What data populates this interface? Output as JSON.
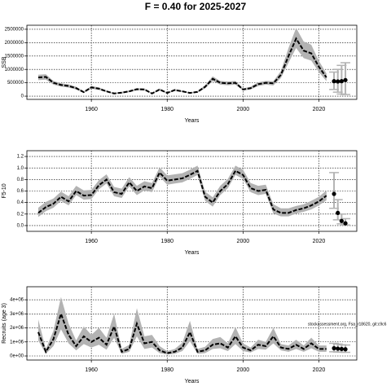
{
  "title": "F = 0.40 for 2025-2027",
  "chart_data": [
    {
      "type": "line",
      "ylabel": "SSB",
      "xlabel": "Years",
      "x": [
        1946,
        1948,
        1950,
        1952,
        1954,
        1956,
        1958,
        1960,
        1962,
        1964,
        1966,
        1968,
        1970,
        1972,
        1974,
        1976,
        1978,
        1980,
        1982,
        1984,
        1986,
        1988,
        1990,
        1992,
        1994,
        1996,
        1998,
        2000,
        2002,
        2004,
        2006,
        2008,
        2010,
        2012,
        2014,
        2016,
        2018,
        2020,
        2022
      ],
      "values": [
        700000,
        720000,
        500000,
        420000,
        380000,
        300000,
        150000,
        330000,
        280000,
        180000,
        100000,
        130000,
        180000,
        260000,
        250000,
        100000,
        250000,
        120000,
        230000,
        180000,
        120000,
        160000,
        350000,
        650000,
        500000,
        480000,
        500000,
        250000,
        300000,
        450000,
        500000,
        480000,
        800000,
        1500000,
        2150000,
        1700000,
        1600000,
        1100000,
        700000
      ],
      "low": [
        600000,
        620000,
        430000,
        360000,
        320000,
        250000,
        120000,
        280000,
        230000,
        150000,
        80000,
        100000,
        150000,
        220000,
        210000,
        80000,
        210000,
        100000,
        190000,
        150000,
        100000,
        130000,
        290000,
        560000,
        430000,
        410000,
        430000,
        210000,
        250000,
        380000,
        430000,
        400000,
        680000,
        1250000,
        1800000,
        1420000,
        1330000,
        900000,
        560000
      ],
      "high": [
        800000,
        820000,
        570000,
        480000,
        440000,
        350000,
        180000,
        380000,
        330000,
        210000,
        120000,
        160000,
        210000,
        300000,
        290000,
        120000,
        290000,
        140000,
        270000,
        210000,
        140000,
        190000,
        410000,
        740000,
        570000,
        550000,
        570000,
        290000,
        350000,
        520000,
        570000,
        560000,
        940000,
        1800000,
        2550000,
        2040000,
        1920000,
        1320000,
        850000
      ],
      "forecast": {
        "x": [
          2024,
          2025,
          2026,
          2027
        ],
        "values": [
          560000,
          550000,
          560000,
          600000
        ],
        "low": [
          250000,
          150000,
          80000,
          60000
        ],
        "high": [
          900000,
          1000000,
          1150000,
          1250000
        ]
      },
      "xlim": [
        1943,
        2030
      ],
      "xticks": [
        1960,
        1980,
        2000,
        2020
      ],
      "ylim": [
        -120000,
        2650000
      ],
      "yticks": [
        0,
        500000,
        1000000,
        1500000,
        2000000,
        2500000
      ],
      "grid": true,
      "color": "#000000",
      "band_color": "#b3b3b3"
    },
    {
      "type": "line",
      "ylabel": "F5-10",
      "xlabel": "Years",
      "x": [
        1946,
        1948,
        1950,
        1952,
        1954,
        1956,
        1958,
        1960,
        1962,
        1964,
        1966,
        1968,
        1970,
        1972,
        1974,
        1976,
        1978,
        1980,
        1982,
        1984,
        1986,
        1988,
        1990,
        1992,
        1994,
        1996,
        1998,
        2000,
        2002,
        2004,
        2006,
        2008,
        2010,
        2012,
        2014,
        2016,
        2018,
        2020,
        2022
      ],
      "values": [
        0.22,
        0.32,
        0.38,
        0.5,
        0.42,
        0.6,
        0.52,
        0.53,
        0.7,
        0.8,
        0.58,
        0.55,
        0.75,
        0.6,
        0.68,
        0.65,
        0.92,
        0.78,
        0.8,
        0.82,
        0.88,
        0.95,
        0.5,
        0.4,
        0.6,
        0.72,
        0.95,
        0.88,
        0.65,
        0.6,
        0.62,
        0.28,
        0.22,
        0.22,
        0.27,
        0.3,
        0.35,
        0.42,
        0.52
      ],
      "low": [
        0.15,
        0.25,
        0.31,
        0.43,
        0.35,
        0.53,
        0.45,
        0.46,
        0.63,
        0.73,
        0.51,
        0.48,
        0.68,
        0.53,
        0.61,
        0.58,
        0.85,
        0.71,
        0.73,
        0.75,
        0.81,
        0.88,
        0.43,
        0.33,
        0.53,
        0.65,
        0.88,
        0.81,
        0.58,
        0.53,
        0.55,
        0.21,
        0.16,
        0.16,
        0.21,
        0.24,
        0.28,
        0.35,
        0.44
      ],
      "high": [
        0.31,
        0.41,
        0.47,
        0.59,
        0.51,
        0.69,
        0.61,
        0.62,
        0.79,
        0.89,
        0.67,
        0.64,
        0.84,
        0.69,
        0.77,
        0.74,
        1.01,
        0.87,
        0.89,
        0.91,
        0.97,
        1.04,
        0.59,
        0.49,
        0.69,
        0.81,
        1.04,
        0.97,
        0.74,
        0.69,
        0.71,
        0.37,
        0.3,
        0.3,
        0.34,
        0.37,
        0.43,
        0.5,
        0.61
      ],
      "forecast": {
        "x": [
          2024,
          2025,
          2026,
          2027
        ],
        "values": [
          0.55,
          0.22,
          0.08,
          0.04
        ],
        "low": [
          0.3,
          0.1,
          0.03,
          0.01
        ],
        "high": [
          0.92,
          0.45,
          0.2,
          0.12
        ]
      },
      "xlim": [
        1943,
        2030
      ],
      "xticks": [
        1960,
        1980,
        2000,
        2020
      ],
      "ylim": [
        -0.1,
        1.3
      ],
      "yticks": [
        {
          "value": 0,
          "label": "0.0"
        },
        0.2,
        0.4,
        0.6,
        0.8,
        {
          "value": 1,
          "label": "1.0"
        },
        1.2
      ],
      "grid": true,
      "color": "#000000",
      "band_color": "#b3b3b3"
    },
    {
      "type": "line",
      "ylabel": "Recruits (age 3)",
      "xlabel": "Years",
      "annotation": "stockassessment.org, Fsa_r18620, git:c9c6",
      "x": [
        1946,
        1948,
        1950,
        1952,
        1954,
        1956,
        1958,
        1960,
        1962,
        1964,
        1966,
        1968,
        1970,
        1972,
        1974,
        1976,
        1978,
        1980,
        1982,
        1984,
        1986,
        1988,
        1990,
        1992,
        1994,
        1996,
        1998,
        2000,
        2002,
        2004,
        2006,
        2008,
        2010,
        2012,
        2014,
        2016,
        2018,
        2020,
        2022
      ],
      "values": [
        1700000,
        300000,
        1200000,
        3000000,
        1500000,
        700000,
        1400000,
        1000000,
        1300000,
        800000,
        2100000,
        300000,
        500000,
        2300000,
        900000,
        1000000,
        400000,
        200000,
        300000,
        600000,
        1700000,
        300000,
        400000,
        800000,
        900000,
        600000,
        1400000,
        600000,
        400000,
        800000,
        700000,
        1400000,
        600000,
        500000,
        800000,
        500000,
        900000,
        500000,
        500000
      ],
      "low": [
        1100000,
        150000,
        700000,
        1900000,
        900000,
        400000,
        850000,
        600000,
        800000,
        450000,
        1300000,
        150000,
        300000,
        1400000,
        500000,
        600000,
        200000,
        100000,
        150000,
        350000,
        1050000,
        150000,
        200000,
        500000,
        550000,
        350000,
        850000,
        350000,
        250000,
        500000,
        450000,
        900000,
        400000,
        300000,
        500000,
        300000,
        550000,
        300000,
        300000
      ],
      "high": [
        2600000,
        500000,
        1800000,
        4200000,
        2300000,
        1100000,
        2100000,
        1500000,
        2000000,
        1300000,
        3000000,
        500000,
        800000,
        3400000,
        1400000,
        1500000,
        700000,
        350000,
        500000,
        950000,
        2500000,
        500000,
        650000,
        1200000,
        1350000,
        900000,
        2050000,
        900000,
        600000,
        1150000,
        1000000,
        2000000,
        850000,
        750000,
        1150000,
        750000,
        1300000,
        750000,
        750000
      ],
      "forecast": {
        "x": [
          2024,
          2025,
          2026,
          2027
        ],
        "values": [
          550000,
          520000,
          500000,
          480000
        ],
        "low": [
          300000,
          280000,
          270000,
          260000
        ],
        "high": [
          900000,
          850000,
          800000,
          780000
        ]
      },
      "xlim": [
        1943,
        2030
      ],
      "xticks": [
        1960,
        1980,
        2000,
        2020
      ],
      "ylim": [
        -290000,
        4930000
      ],
      "yticks": [
        {
          "value": 0,
          "label": "0e+00"
        },
        {
          "value": 1000000,
          "label": "1e+06"
        },
        {
          "value": 2000000,
          "label": "2e+06"
        },
        {
          "value": 3000000,
          "label": "3e+06"
        },
        {
          "value": 4000000,
          "label": "4e+06"
        }
      ],
      "grid": true,
      "color": "#000000",
      "band_color": "#b3b3b3"
    }
  ]
}
